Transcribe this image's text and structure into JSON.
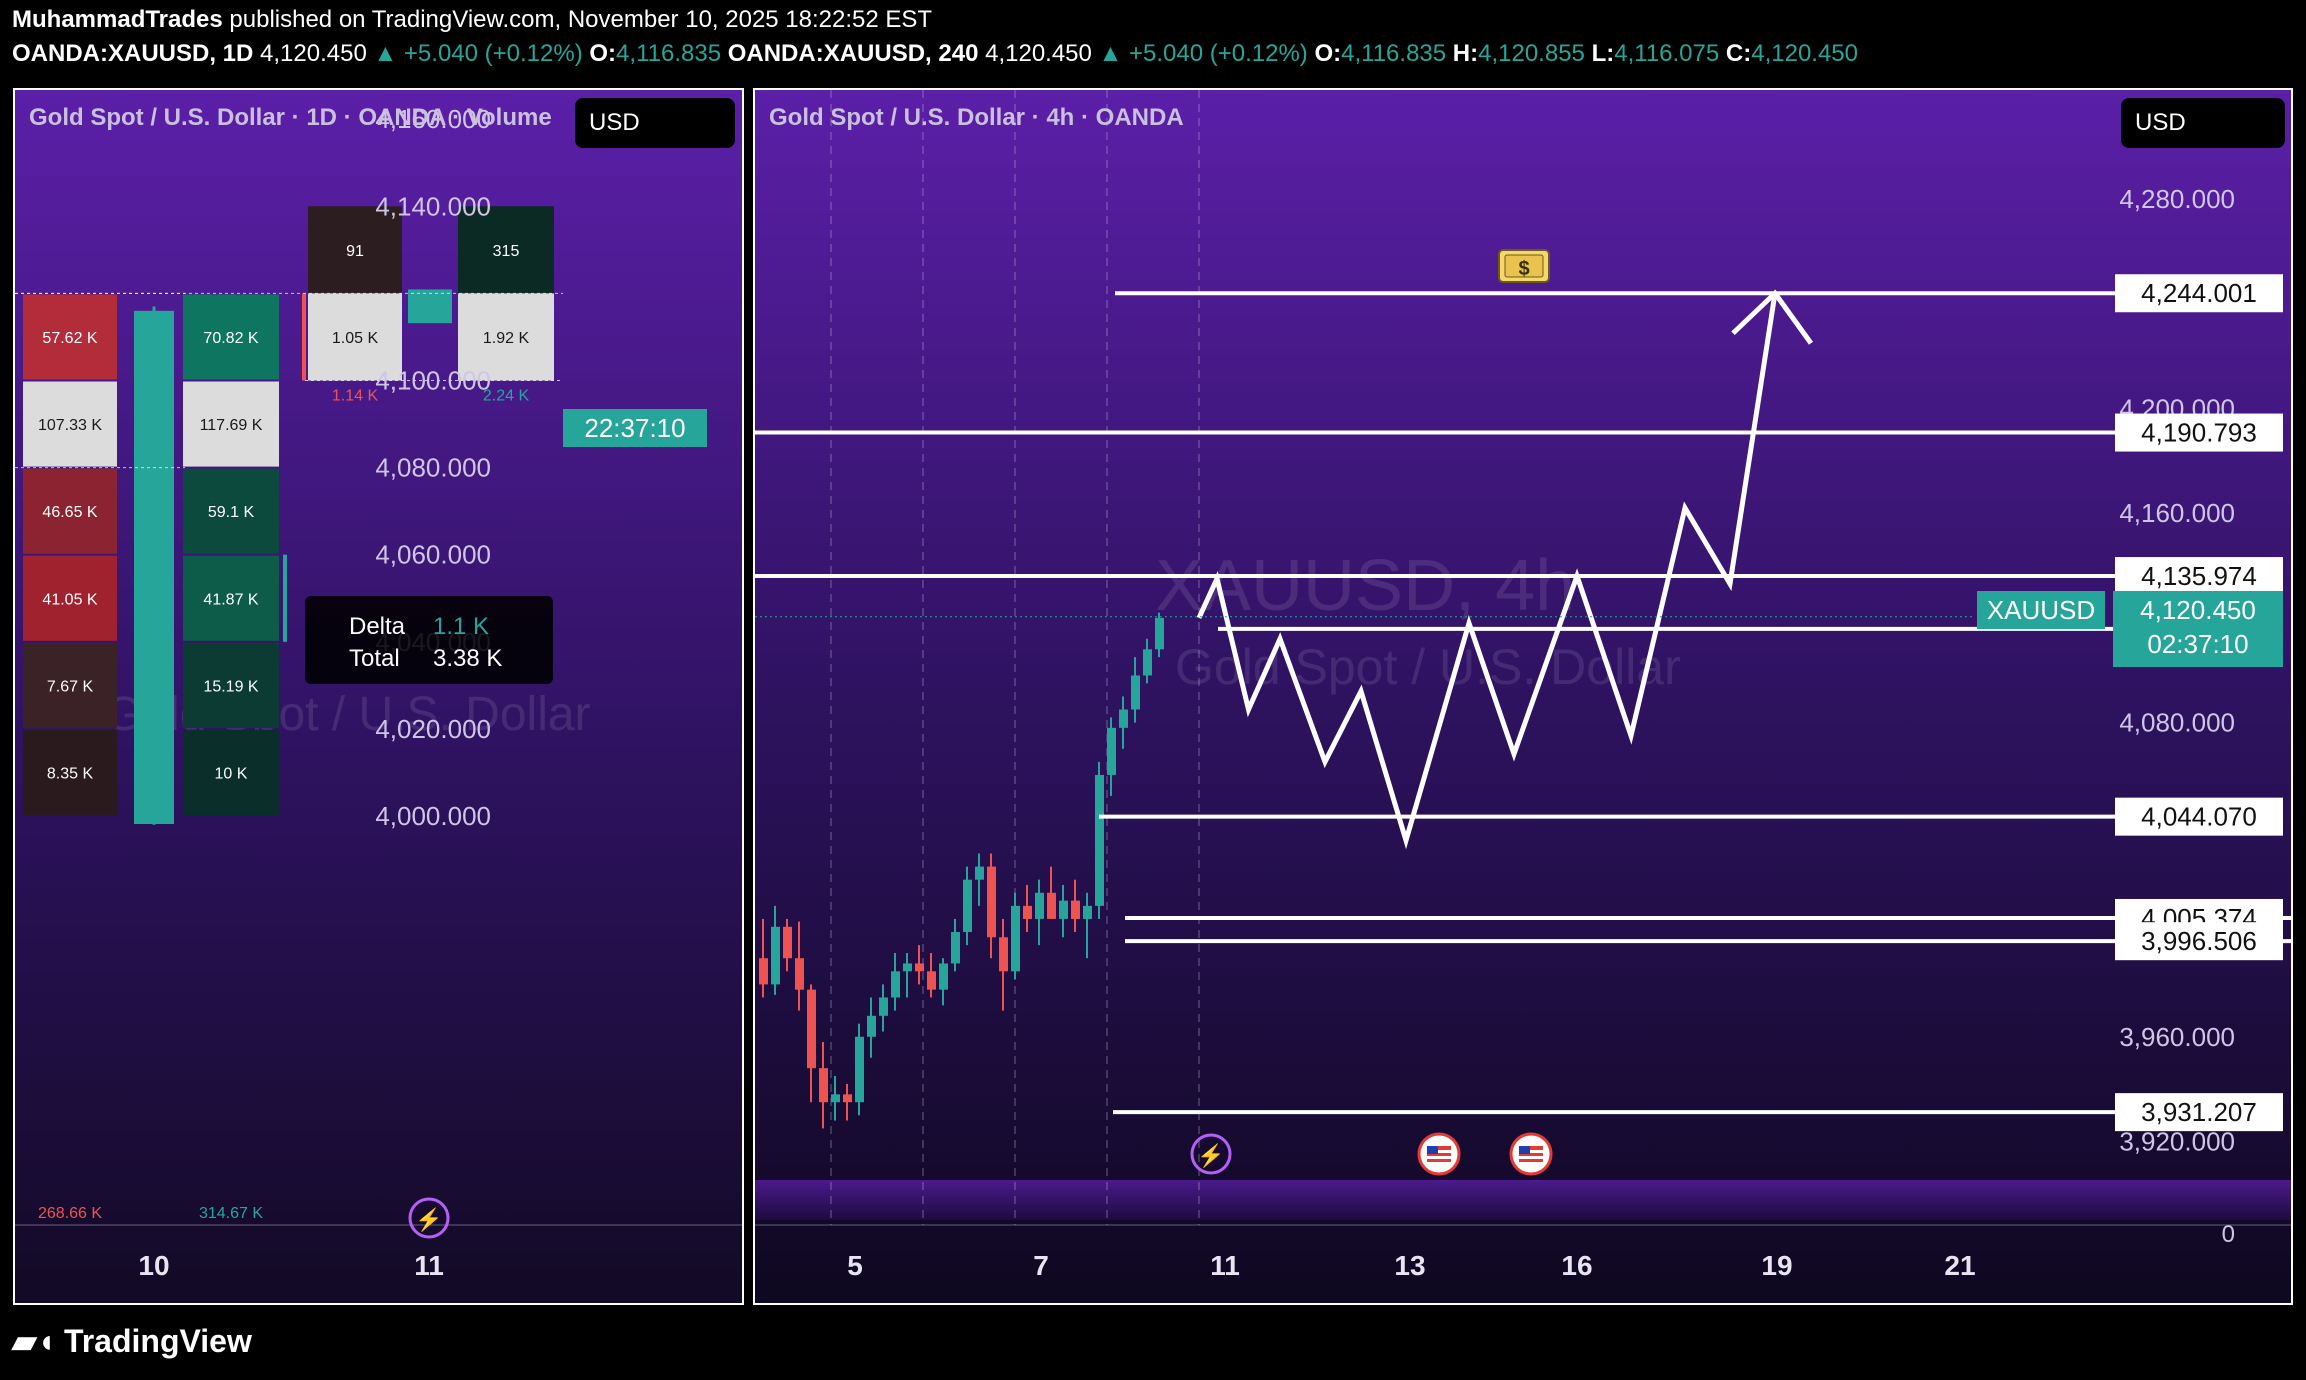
{
  "header": {
    "author": "MuhammadTrades",
    "published": "published on TradingView.com, November 10, 2025 18:22:52 EST",
    "line2": {
      "sym1": "OANDA:XAUUSD, 1D",
      "sym1_price": "4,120.450",
      "sym1_change": "▲ +5.040 (+0.12%)",
      "sym1_o_label": "O:",
      "sym1_o": "4,116.835",
      "sym2": "OANDA:XAUUSD, 240",
      "sym2_price": "4,120.450",
      "sym2_change": "▲ +5.040 (+0.12%)",
      "o_label": "O:",
      "o": "4,116.835",
      "h_label": "H:",
      "h": "4,120.855",
      "l_label": "L:",
      "l": "4,116.075",
      "c_label": "C:",
      "c": "4,120.450"
    }
  },
  "colors": {
    "up": "#26a69a",
    "down": "#ef5350",
    "bg_top": "#5b1fa8",
    "bg_bottom": "#120a25"
  },
  "left_panel": {
    "title": "Gold Spot / U.S. Dollar · 1D · OANDA · Volume",
    "currency": "USD",
    "watermark_text": "Gold Spot / U.S. Dollar",
    "countdown": "22:37:10",
    "x_labels": [
      "10",
      "11"
    ],
    "delta_label": "Delta",
    "delta_value": "1.1 K",
    "total_label": "Total",
    "total_value": "3.38 K"
  },
  "right_panel": {
    "title": "Gold Spot / U.S. Dollar · 4h · OANDA",
    "currency": "USD",
    "watermark_symbol": "XAUUSD, 4h",
    "watermark_name": "Gold Spot / U.S. Dollar",
    "symbol_tag": "XAUUSD",
    "price_tag": "4,120.450",
    "price_countdown": "02:37:10",
    "x_labels": [
      "5",
      "7",
      "11",
      "13",
      "16",
      "19",
      "21"
    ],
    "volume_axis_zero": "0",
    "target_icon": "money-bag-icon"
  },
  "chart_data": [
    {
      "type": "table",
      "title": "Gold Spot / U.S. Dollar · 1D · OANDA · Volume",
      "ylim": [
        4000,
        4160
      ],
      "y_ticks": [
        "4,160.000",
        "4,140.000",
        "4,100.000",
        "4,080.000",
        "4,060.000",
        "4,040.000",
        "4,020.000",
        "4,000.000"
      ],
      "x_tick_labels": [
        "10",
        "11"
      ],
      "day10": {
        "candle": {
          "open": 4000,
          "high": 4117,
          "low": 3998,
          "close": 4116
        },
        "sell_cells": [
          "57.62 K",
          "107.33 K",
          "46.65 K",
          "41.05 K",
          "7.67 K",
          "8.35 K"
        ],
        "buy_cells": [
          "70.82 K",
          "117.69 K",
          "59.1 K",
          "41.87 K",
          "15.19 K",
          "10 K"
        ],
        "sell_total": "268.66 K",
        "buy_total": "314.67 K",
        "row_bounds": [
          4120,
          4100,
          4080,
          4060,
          4040,
          4020,
          4000
        ]
      },
      "day11": {
        "candle": {
          "open": 4116.835,
          "high": 4120.855,
          "low": 4116.075,
          "close": 4120.45
        },
        "sell_cells": [
          "91",
          "1.05 K"
        ],
        "buy_cells": [
          "315",
          "1.92 K"
        ],
        "sell_total": "1.14 K",
        "buy_total": "2.24 K",
        "row_bounds": [
          4140,
          4120,
          4100
        ]
      }
    },
    {
      "type": "line",
      "title": "Gold Spot / U.S. Dollar · 4h · OANDA",
      "ylim": [
        3900,
        4300
      ],
      "y_ticks": [
        "4,280.000",
        "4,200.000",
        "4,160.000",
        "4,080.000",
        "3,960.000",
        "3,920.000"
      ],
      "x_tick_labels": [
        "5",
        "7",
        "11",
        "13",
        "16",
        "19",
        "21"
      ],
      "levels": [
        "4,244.001",
        "4,190.793",
        "4,135.974",
        "4,115.820",
        "4,044.070",
        "4,005.374",
        "3,996.506",
        "3,931.207"
      ],
      "level_values": [
        4244.001,
        4190.793,
        4135.974,
        4115.82,
        4044.07,
        4005.374,
        3996.506,
        3931.207
      ],
      "current_price": 4120.45,
      "candles": [
        {
          "o": 3990,
          "h": 4005,
          "l": 3975,
          "c": 3980
        },
        {
          "o": 3980,
          "h": 4010,
          "l": 3976,
          "c": 4002
        },
        {
          "o": 4002,
          "h": 4005,
          "l": 3985,
          "c": 3990
        },
        {
          "o": 3990,
          "h": 4004,
          "l": 3970,
          "c": 3978
        },
        {
          "o": 3978,
          "h": 3980,
          "l": 3935,
          "c": 3948
        },
        {
          "o": 3948,
          "h": 3958,
          "l": 3925,
          "c": 3935
        },
        {
          "o": 3935,
          "h": 3945,
          "l": 3928,
          "c": 3938
        },
        {
          "o": 3938,
          "h": 3942,
          "l": 3928,
          "c": 3935
        },
        {
          "o": 3935,
          "h": 3965,
          "l": 3930,
          "c": 3960
        },
        {
          "o": 3960,
          "h": 3975,
          "l": 3952,
          "c": 3968
        },
        {
          "o": 3968,
          "h": 3980,
          "l": 3962,
          "c": 3975
        },
        {
          "o": 3975,
          "h": 3992,
          "l": 3970,
          "c": 3985
        },
        {
          "o": 3985,
          "h": 3992,
          "l": 3975,
          "c": 3988
        },
        {
          "o": 3988,
          "h": 3995,
          "l": 3980,
          "c": 3985
        },
        {
          "o": 3985,
          "h": 3992,
          "l": 3975,
          "c": 3978
        },
        {
          "o": 3978,
          "h": 3990,
          "l": 3972,
          "c": 3988
        },
        {
          "o": 3988,
          "h": 4005,
          "l": 3985,
          "c": 4000
        },
        {
          "o": 4000,
          "h": 4025,
          "l": 3995,
          "c": 4020
        },
        {
          "o": 4020,
          "h": 4030,
          "l": 4010,
          "c": 4025
        },
        {
          "o": 4025,
          "h": 4030,
          "l": 3990,
          "c": 3998
        },
        {
          "o": 3998,
          "h": 4005,
          "l": 3970,
          "c": 3985
        },
        {
          "o": 3985,
          "h": 4015,
          "l": 3982,
          "c": 4010
        },
        {
          "o": 4010,
          "h": 4018,
          "l": 4000,
          "c": 4005
        },
        {
          "o": 4005,
          "h": 4020,
          "l": 3995,
          "c": 4015
        },
        {
          "o": 4015,
          "h": 4025,
          "l": 4008,
          "c": 4005
        },
        {
          "o": 4005,
          "h": 4018,
          "l": 3998,
          "c": 4012
        },
        {
          "o": 4012,
          "h": 4020,
          "l": 4000,
          "c": 4005
        },
        {
          "o": 4005,
          "h": 4015,
          "l": 3990,
          "c": 4010
        },
        {
          "o": 4010,
          "h": 4065,
          "l": 4005,
          "c": 4060
        },
        {
          "o": 4060,
          "h": 4082,
          "l": 4052,
          "c": 4078
        },
        {
          "o": 4078,
          "h": 4090,
          "l": 4070,
          "c": 4085
        },
        {
          "o": 4085,
          "h": 4105,
          "l": 4080,
          "c": 4098
        },
        {
          "o": 4098,
          "h": 4112,
          "l": 4095,
          "c": 4108
        },
        {
          "o": 4108,
          "h": 4122,
          "l": 4105,
          "c": 4120
        }
      ],
      "projection": [
        [
          0,
          4120
        ],
        [
          0.4,
          4135
        ],
        [
          1.1,
          4085
        ],
        [
          1.8,
          4112
        ],
        [
          2.8,
          4065
        ],
        [
          3.6,
          4092
        ],
        [
          4.6,
          4035
        ],
        [
          6.0,
          4118
        ],
        [
          7.0,
          4068
        ],
        [
          8.4,
          4136
        ],
        [
          9.6,
          4075
        ],
        [
          10.8,
          4162
        ],
        [
          11.8,
          4133
        ],
        [
          12.8,
          4244
        ]
      ]
    }
  ],
  "footer": {
    "brand": "TradingView"
  }
}
